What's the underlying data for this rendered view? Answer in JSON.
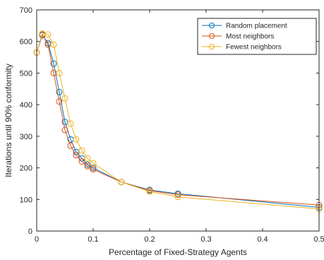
{
  "chart_data": {
    "type": "line",
    "title": "",
    "xlabel": "Percentage of Fixed-Strategy Agents",
    "ylabel": "Iterations until 90% conformity",
    "xlim": [
      0,
      0.5
    ],
    "ylim": [
      0,
      700
    ],
    "xticks": [
      0,
      0.1,
      0.2,
      0.3,
      0.4,
      0.5
    ],
    "xtick_labels": [
      "0",
      "0.1",
      "0.2",
      "0.3",
      "0.4",
      "0.5"
    ],
    "yticks": [
      0,
      100,
      200,
      300,
      400,
      500,
      600,
      700
    ],
    "ytick_labels": [
      "0",
      "100",
      "200",
      "300",
      "400",
      "500",
      "600",
      "700"
    ],
    "grid": false,
    "legend_position": "top-right",
    "marker": "circle",
    "x": [
      0,
      0.01,
      0.02,
      0.03,
      0.04,
      0.05,
      0.06,
      0.07,
      0.08,
      0.09,
      0.1,
      0.15,
      0.2,
      0.25,
      0.5
    ],
    "series": [
      {
        "name": "Random placement",
        "color": "#0072BD",
        "values": [
          565,
          620,
          595,
          530,
          440,
          345,
          290,
          250,
          230,
          210,
          200,
          155,
          130,
          118,
          75
        ]
      },
      {
        "name": "Most neighbors",
        "color": "#D95319",
        "values": [
          565,
          622,
          590,
          500,
          410,
          320,
          270,
          240,
          220,
          205,
          195,
          155,
          128,
          115,
          82
        ]
      },
      {
        "name": "Fewest neighbors",
        "color": "#EDB120",
        "values": [
          565,
          625,
          622,
          590,
          500,
          420,
          340,
          290,
          255,
          230,
          215,
          155,
          125,
          108,
          70
        ]
      }
    ]
  }
}
